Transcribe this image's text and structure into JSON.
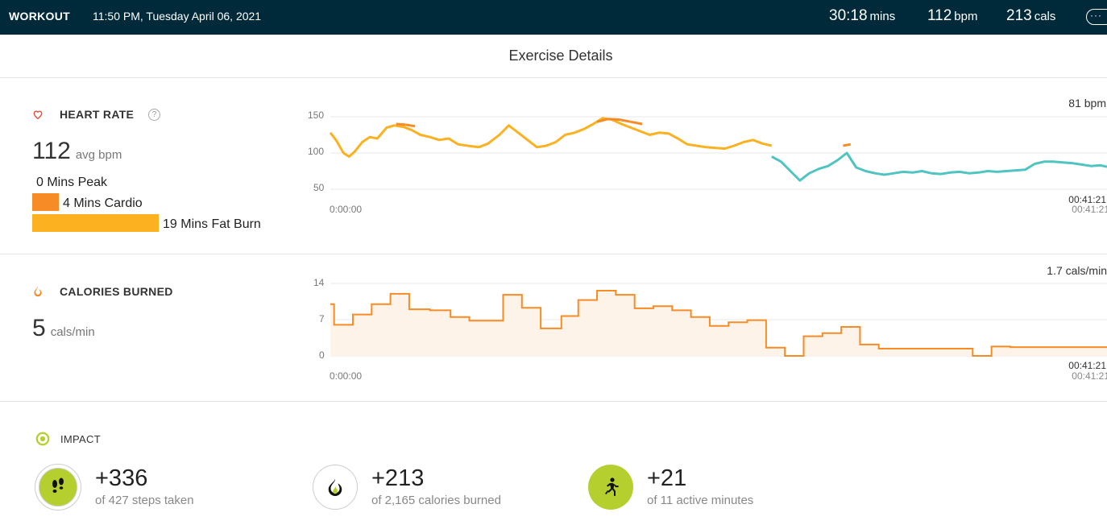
{
  "topbar": {
    "label": "WORKOUT",
    "datetime": "11:50 PM, Tuesday April 06, 2021",
    "duration_value": "30:18",
    "duration_unit": "mins",
    "bpm_value": "112",
    "bpm_unit": "bpm",
    "cals_value": "213",
    "cals_unit": "cals",
    "more_icon": "ellipsis-icon",
    "more_label": "···"
  },
  "page_title": "Exercise Details",
  "heart_rate": {
    "title": "HEART RATE",
    "help": "?",
    "avg_value": "112",
    "avg_unit": "avg bpm",
    "zones": [
      {
        "label": "0 Mins Peak",
        "minutes": 0,
        "color": "#e84e3b"
      },
      {
        "label": "4 Mins Cardio",
        "minutes": 4,
        "color": "#f78b26"
      },
      {
        "label": "19 Mins Fat Burn",
        "minutes": 19,
        "color": "#fbb120"
      }
    ]
  },
  "calories": {
    "title": "CALORIES BURNED",
    "avg_value": "5",
    "avg_unit": "cals/min"
  },
  "impact": {
    "title": "IMPACT",
    "items": [
      {
        "value": "+336",
        "sub": "of 427 steps taken",
        "icon": "footprints-icon",
        "filled": true
      },
      {
        "value": "+213",
        "sub": "of 2,165 calories burned",
        "icon": "flame-icon",
        "filled": false
      },
      {
        "value": "+21",
        "sub": "of 11 active minutes",
        "icon": "runner-icon",
        "filled": true
      }
    ]
  },
  "colors": {
    "topbar": "#002a3a",
    "cardio": "#f78b26",
    "fat_burn": "#fbb120",
    "below_zone": "#4fc4c0",
    "impact_green": "#b5cf2e",
    "heart_icon": "#e84e3b"
  },
  "chart_data": [
    {
      "type": "line",
      "name": "heart-rate-chart",
      "x_start_label": "0:00:00",
      "x_end_label": "00:41:21",
      "x_end_label_dup": "00:41:21",
      "current_label": "81 bpm",
      "yticks": [
        "150",
        "100",
        "50"
      ],
      "ylim": [
        50,
        150
      ],
      "xlim_minutes": [
        0,
        41.35
      ],
      "grid": true,
      "series": [
        {
          "zone": "fat_burn",
          "x_minutes": [
            0,
            0.3,
            0.7,
            1.0,
            1.3,
            1.7,
            2.1,
            2.5,
            3.0,
            3.4,
            3.9,
            4.3,
            4.8,
            5.3,
            5.8,
            6.3,
            6.8,
            7.3,
            7.9,
            8.4,
            9.0,
            9.5,
            10.0,
            10.5,
            11.0,
            11.5,
            12.0,
            12.5,
            13.0,
            13.5,
            14.0,
            14.5,
            15.0,
            15.5,
            16.0,
            16.5,
            17.0,
            17.5,
            18.0,
            18.5,
            19.0,
            19.5,
            20.0,
            20.5,
            21.0,
            21.5,
            22.0,
            22.5,
            23.0,
            23.5
          ],
          "y_bpm": [
            128,
            118,
            100,
            95,
            102,
            115,
            122,
            120,
            135,
            138,
            136,
            132,
            125,
            122,
            118,
            120,
            112,
            110,
            108,
            113,
            125,
            138,
            128,
            118,
            108,
            110,
            115,
            125,
            128,
            133,
            140,
            148,
            146,
            140,
            135,
            130,
            125,
            128,
            127,
            120,
            112,
            110,
            108,
            107,
            106,
            110,
            115,
            118,
            113,
            110
          ]
        },
        {
          "zone": "cardio",
          "x_minutes": [
            3.5,
            4.0,
            4.5,
            14.2,
            14.8,
            15.4,
            16.0,
            16.6,
            27.3,
            27.7
          ],
          "y_bpm": [
            140,
            139,
            137,
            143,
            147,
            146,
            143,
            140,
            110,
            112
          ]
        },
        {
          "zone": "below",
          "x_minutes": [
            23.5,
            24.0,
            24.5,
            25.0,
            25.5,
            26.0,
            26.5,
            27.0,
            27.5,
            28.0,
            28.5,
            29.0,
            29.5,
            30.0,
            30.5,
            31.0,
            31.5,
            32.0,
            32.5,
            33.0,
            33.5,
            34.0,
            34.5,
            35.0,
            35.5,
            36.0,
            36.5,
            37.0,
            37.5,
            38.0,
            38.5,
            39.0,
            39.5,
            40.0,
            40.5,
            41.0,
            41.35
          ],
          "y_bpm": [
            95,
            88,
            75,
            62,
            72,
            78,
            82,
            90,
            100,
            80,
            75,
            72,
            70,
            72,
            74,
            73,
            75,
            72,
            71,
            73,
            74,
            72,
            73,
            75,
            74,
            75,
            76,
            77,
            85,
            88,
            88,
            87,
            86,
            84,
            82,
            83,
            81
          ]
        }
      ]
    },
    {
      "type": "area",
      "name": "calories-chart",
      "x_start_label": "0:00:00",
      "x_end_label": "00:41:21",
      "x_end_label_dup": "00:41:21",
      "current_label": "1.7 cals/min",
      "yticks": [
        "14",
        "7",
        "0"
      ],
      "ylim": [
        0,
        14
      ],
      "xlim_minutes": [
        0,
        41.35
      ],
      "grid": true,
      "step": true,
      "x_minutes": [
        0,
        0.2,
        1.2,
        2.2,
        3.2,
        4.2,
        5.3,
        6.4,
        7.4,
        8.4,
        9.2,
        10.2,
        11.2,
        12.3,
        13.2,
        14.2,
        15.2,
        16.2,
        17.2,
        18.2,
        19.2,
        20.2,
        21.2,
        22.2,
        23.2,
        24.2,
        25.2,
        26.2,
        27.2,
        28.2,
        29.2,
        30.2,
        31.2,
        34.2,
        35.2,
        36.2,
        37.2,
        38.2,
        39.2,
        40.2,
        41.35
      ],
      "y_cals": [
        10,
        6,
        8,
        10,
        12,
        9,
        8.8,
        7.5,
        6.8,
        6.8,
        11.8,
        9.3,
        5.3,
        7.7,
        10.8,
        12.6,
        11.8,
        9.2,
        9.6,
        8.8,
        7.5,
        5.8,
        6.5,
        6.9,
        1.6,
        0,
        3.8,
        4.4,
        5.6,
        2.2,
        1.4,
        1.4,
        1.4,
        0,
        1.8,
        1.7,
        1.7,
        1.7,
        1.7,
        1.7,
        1.7
      ]
    }
  ]
}
